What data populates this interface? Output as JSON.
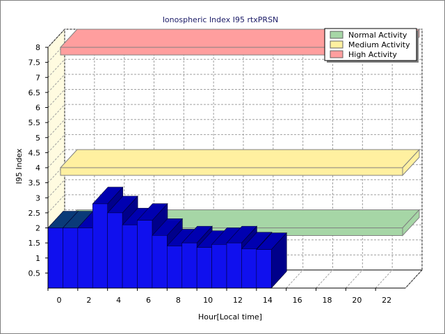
{
  "chart_data": {
    "type": "bar",
    "title": "Ionospheric Index I95 rtxPRSN",
    "xlabel": "Hour[Local time]",
    "ylabel": "I95 Index",
    "xlim": [
      0,
      24
    ],
    "ylim": [
      0,
      8
    ],
    "x_ticks": [
      "0",
      "2",
      "4",
      "6",
      "8",
      "10",
      "12",
      "14",
      "16",
      "18",
      "20",
      "22"
    ],
    "y_ticks": [
      "0.5",
      "1",
      "1.5",
      "2",
      "2.5",
      "3",
      "3.5",
      "4",
      "4.5",
      "5",
      "5.5",
      "6",
      "6.5",
      "7",
      "7.5",
      "8"
    ],
    "grid": true,
    "legend_position": "top-right",
    "legend": [
      "Normal Activity",
      "Medium Activity",
      "High Activity"
    ],
    "threshold_bands": [
      {
        "name": "Normal Activity",
        "value": 2,
        "color": "#a6d6a6"
      },
      {
        "name": "Medium Activity",
        "value": 4,
        "color": "#fff0a0"
      },
      {
        "name": "High Activity",
        "value": 8,
        "color": "#ff9e9e"
      }
    ],
    "bar_color": "#1010ee",
    "bar_top_color": "#0000b0",
    "bar_side_color": "#00008a",
    "first_bars_top_color": "#0a3a78",
    "x": [
      0,
      1,
      2,
      3,
      4,
      5,
      6,
      7,
      8,
      9,
      10,
      11,
      12,
      13,
      14
    ],
    "values": [
      2.0,
      2.0,
      2.0,
      2.8,
      2.5,
      2.1,
      2.25,
      1.75,
      1.4,
      1.5,
      1.35,
      1.45,
      1.5,
      1.3,
      1.28
    ]
  }
}
